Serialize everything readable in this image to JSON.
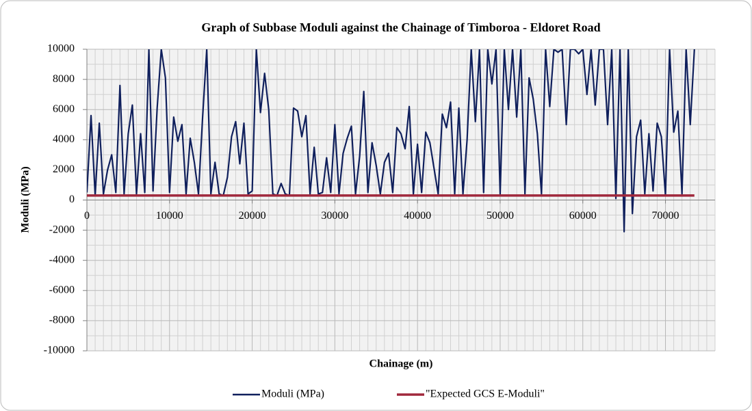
{
  "chart_data": {
    "type": "line",
    "title": "Graph of Subbase Moduli against the Chainage of Timboroa - Eldoret Road",
    "x_label": "Chainage (m)",
    "y_label": "Moduli (MPa)",
    "xlim": [
      0,
      76000
    ],
    "xticks": [
      0,
      10000,
      20000,
      30000,
      40000,
      50000,
      60000,
      70000
    ],
    "ylim": [
      -10000,
      10000
    ],
    "yticks": [
      -10000,
      -8000,
      -6000,
      -4000,
      -2000,
      0,
      2000,
      4000,
      6000,
      8000,
      10000
    ],
    "grid": true,
    "legend": "bottom",
    "series": [
      {
        "name": "Moduli (MPa)",
        "color": "#0f1f5c",
        "x": [
          0,
          500,
          1000,
          1500,
          2000,
          2500,
          3000,
          3500,
          4000,
          4500,
          5000,
          5500,
          6000,
          6500,
          7000,
          7500,
          8000,
          8500,
          9000,
          9500,
          10000,
          10500,
          11000,
          11500,
          12000,
          12500,
          13000,
          13500,
          14000,
          14500,
          15000,
          15500,
          16000,
          16500,
          17000,
          17500,
          18000,
          18500,
          19000,
          19500,
          20000,
          20500,
          21000,
          21500,
          22000,
          22500,
          23000,
          23500,
          24000,
          24500,
          25000,
          25500,
          26000,
          26500,
          27000,
          27500,
          28000,
          28500,
          29000,
          29500,
          30000,
          30500,
          31000,
          31500,
          32000,
          32500,
          33000,
          33500,
          34000,
          34500,
          35000,
          35500,
          36000,
          36500,
          37000,
          37500,
          38000,
          38500,
          39000,
          39500,
          40000,
          40500,
          41000,
          41500,
          42000,
          42500,
          43000,
          43500,
          44000,
          44500,
          45000,
          45500,
          46000,
          46500,
          47000,
          47500,
          48000,
          48500,
          49000,
          49500,
          50000,
          50500,
          51000,
          51500,
          52000,
          52500,
          53000,
          53500,
          54000,
          54500,
          55000,
          55500,
          56000,
          56500,
          57000,
          57500,
          58000,
          58500,
          59000,
          59500,
          60000,
          60500,
          61000,
          61500,
          62000,
          62500,
          63000,
          63500,
          64000,
          64500,
          65000,
          65500,
          66000,
          66500,
          67000,
          67500,
          68000,
          68500,
          69000,
          69500,
          70000,
          70500,
          71000,
          71500,
          72000,
          72500,
          73000,
          73500
        ],
        "values": [
          500,
          5600,
          300,
          5100,
          400,
          2000,
          3000,
          500,
          7600,
          400,
          4400,
          6300,
          400,
          4400,
          500,
          10000,
          600,
          6100,
          10000,
          8100,
          500,
          5500,
          3900,
          5000,
          400,
          4100,
          2500,
          400,
          5500,
          10000,
          400,
          2500,
          400,
          300,
          1500,
          4200,
          5200,
          2400,
          5100,
          400,
          600,
          10000,
          5800,
          8400,
          6000,
          400,
          300,
          1100,
          400,
          300,
          6100,
          5900,
          4200,
          5600,
          400,
          3500,
          400,
          500,
          2800,
          500,
          5000,
          400,
          3100,
          4100,
          4900,
          400,
          2900,
          7200,
          500,
          3800,
          2300,
          400,
          2500,
          3100,
          500,
          4800,
          4400,
          3400,
          6200,
          400,
          3700,
          500,
          4500,
          3800,
          2100,
          400,
          5700,
          4800,
          6500,
          400,
          6100,
          400,
          4000,
          10000,
          5200,
          10000,
          500,
          10000,
          7700,
          10000,
          400,
          10000,
          6000,
          10000,
          5500,
          10000,
          400,
          8100,
          6700,
          4400,
          400,
          10000,
          6200,
          10000,
          9800,
          10000,
          5000,
          10000,
          10000,
          9700,
          10000,
          7000,
          10000,
          6300,
          10000,
          10000,
          5000,
          10000,
          100,
          10000,
          -2100,
          10000,
          -900,
          4200,
          5300,
          400,
          4400,
          600,
          5100,
          4200,
          300,
          10000,
          4500,
          5900,
          400,
          10000,
          5000,
          10000
        ]
      },
      {
        "name": "\"Expected GCS E-Moduli\"",
        "color": "#a0283c",
        "x": [
          0,
          73500
        ],
        "values": [
          300,
          300
        ]
      }
    ]
  }
}
